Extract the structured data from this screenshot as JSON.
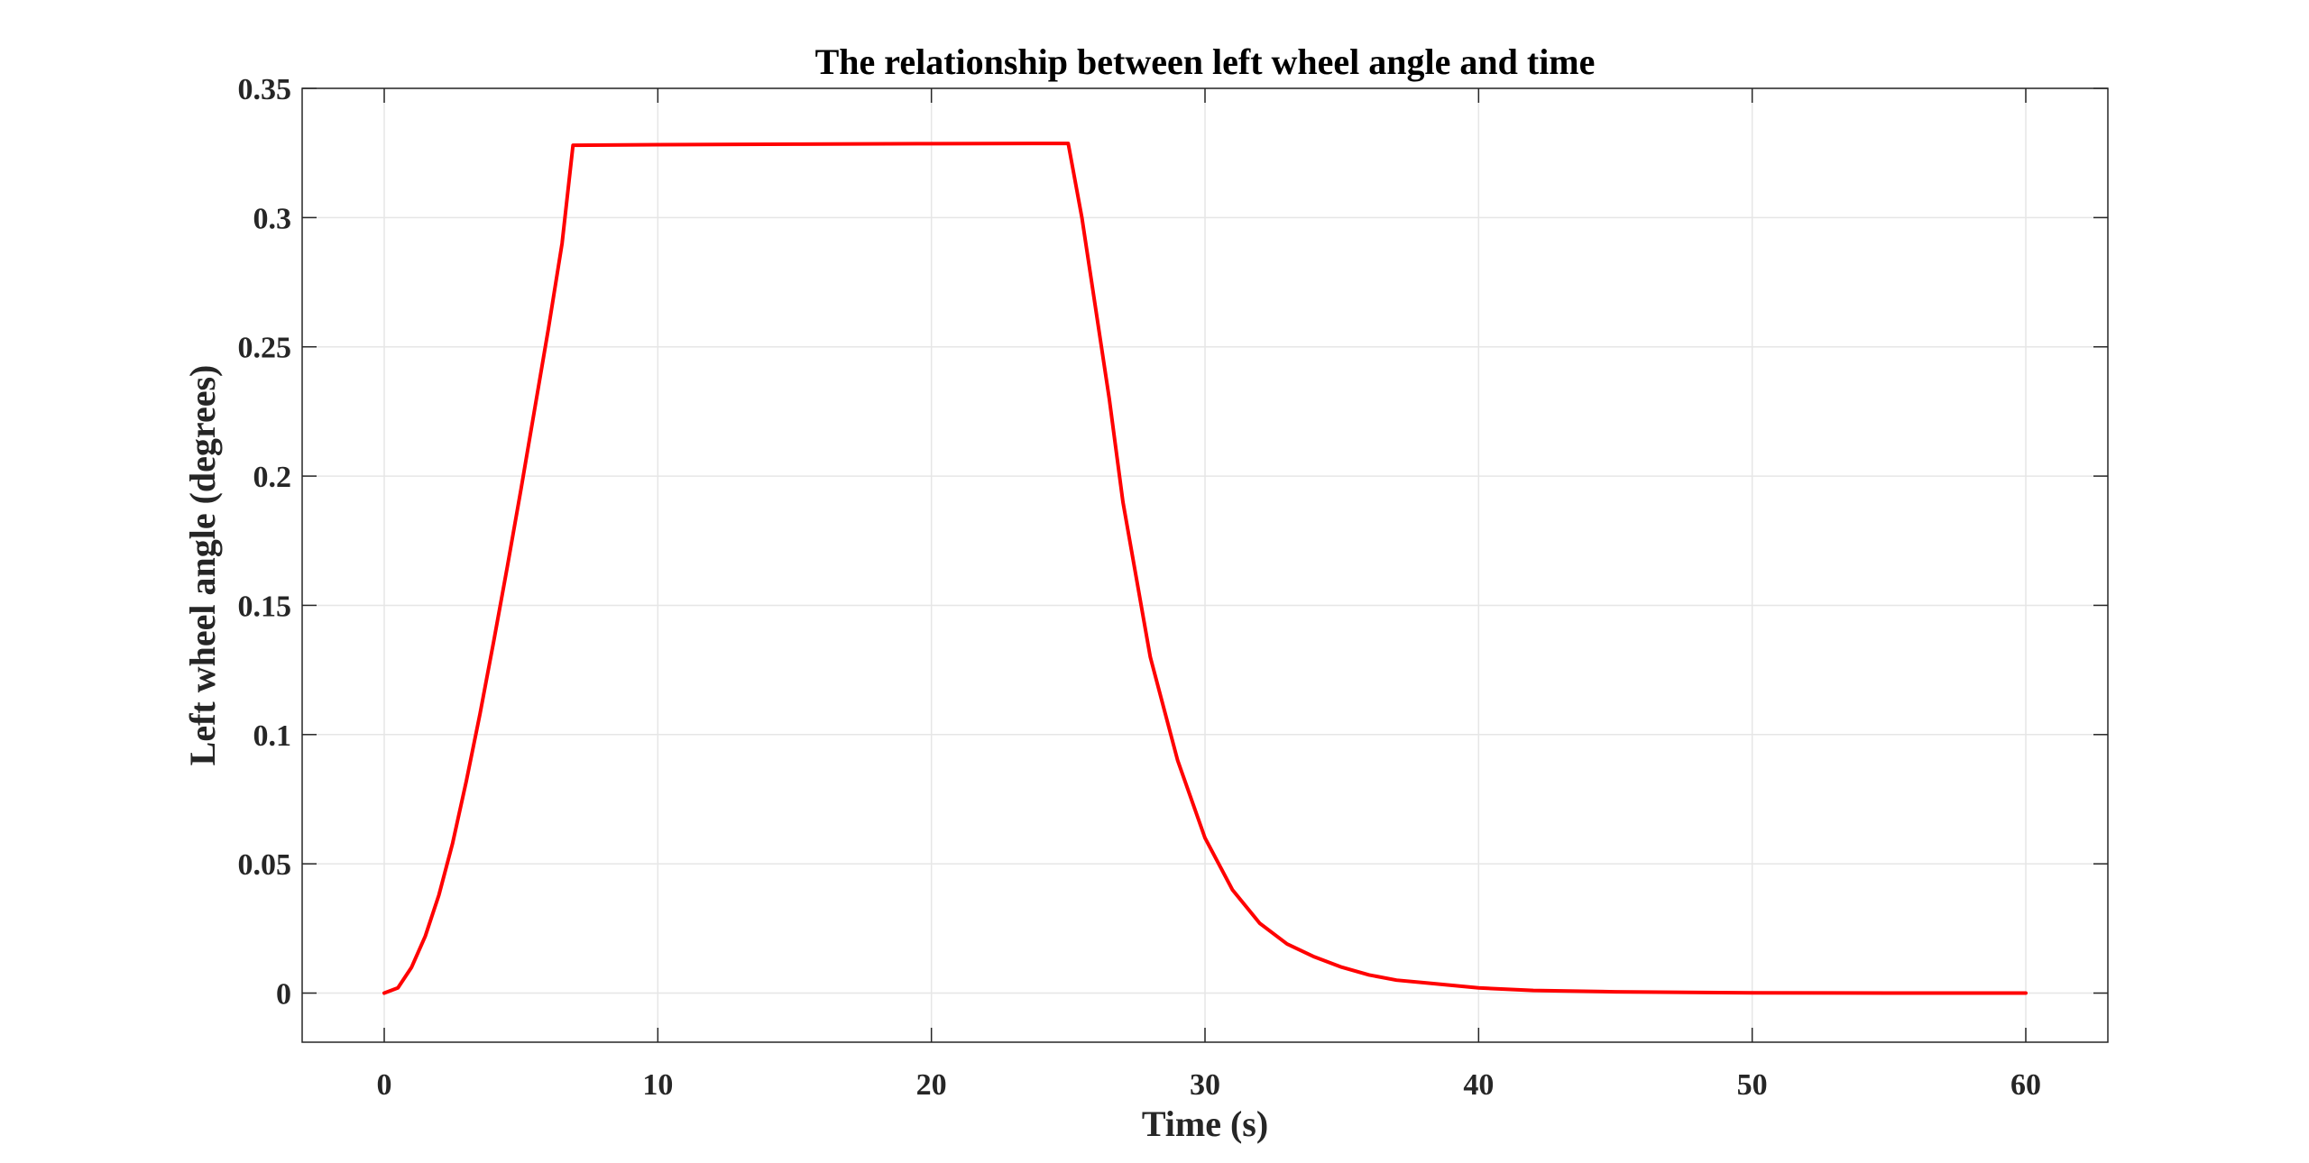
{
  "chart_data": {
    "type": "line",
    "title": "The relationship between left wheel angle and time",
    "xlabel": "Time (s)",
    "ylabel": "Left wheel angle (degrees)",
    "xlim": [
      -3,
      63
    ],
    "ylim": [
      -0.019,
      0.35
    ],
    "xticks": [
      0,
      10,
      20,
      30,
      40,
      50,
      60
    ],
    "xtick_labels": [
      "0",
      "10",
      "20",
      "30",
      "40",
      "50",
      "60"
    ],
    "yticks": [
      0,
      0.05,
      0.1,
      0.15,
      0.2,
      0.25,
      0.3,
      0.35
    ],
    "ytick_labels": [
      "0",
      "0.05",
      "0.1",
      "0.15",
      "0.2",
      "0.25",
      "0.3",
      "0.35"
    ],
    "grid": true,
    "colors": {
      "line": "#ff0000",
      "frame": "#262626",
      "grid": "#e6e6e6"
    },
    "series": [
      {
        "x": [
          0,
          0.5,
          1,
          1.5,
          2,
          2.5,
          3,
          3.5,
          4,
          4.5,
          5,
          5.5,
          6,
          6.5,
          6.9,
          10,
          15,
          20,
          25,
          25.5,
          26,
          26.5,
          27,
          27.5,
          28,
          29,
          30,
          31,
          32,
          33,
          34,
          35,
          36,
          37,
          38,
          40,
          42,
          45,
          50,
          55,
          60
        ],
        "y": [
          0,
          0.002,
          0.01,
          0.022,
          0.038,
          0.058,
          0.082,
          0.108,
          0.136,
          0.165,
          0.195,
          0.226,
          0.257,
          0.29,
          0.328,
          0.3282,
          0.3284,
          0.3286,
          0.3287,
          0.3,
          0.265,
          0.23,
          0.19,
          0.16,
          0.13,
          0.09,
          0.06,
          0.04,
          0.027,
          0.019,
          0.014,
          0.01,
          0.007,
          0.005,
          0.004,
          0.002,
          0.001,
          0.0005,
          0.0001,
          0,
          0
        ]
      }
    ]
  }
}
